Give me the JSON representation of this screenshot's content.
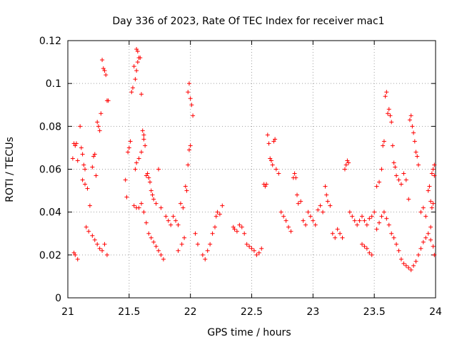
{
  "chart_data": {
    "type": "scatter",
    "title": "Day 336 of 2023, Rate Of TEC Index for receiver mac1",
    "xlabel": "GPS time / hours",
    "ylabel": "ROTI / TECUs",
    "xlim": [
      21,
      24
    ],
    "ylim": [
      0,
      0.12
    ],
    "xticks": [
      21,
      21.5,
      22,
      22.5,
      23,
      23.5,
      24
    ],
    "yticks": [
      0,
      0.02,
      0.04,
      0.06,
      0.08,
      0.1,
      0.12
    ],
    "xtick_labels": [
      "21",
      "21.5",
      "22",
      "22.5",
      "23",
      "23.5",
      "24"
    ],
    "ytick_labels": [
      "0",
      "0.02",
      "0.04",
      "0.06",
      "0.08",
      "0.1",
      "0.12"
    ],
    "grid": true,
    "marker": "+",
    "color": "#ff0000",
    "series": [
      {
        "name": "ROTI",
        "points": [
          [
            21.04,
            0.065
          ],
          [
            21.05,
            0.072
          ],
          [
            21.06,
            0.071
          ],
          [
            21.07,
            0.072
          ],
          [
            21.08,
            0.064
          ],
          [
            21.1,
            0.08
          ],
          [
            21.11,
            0.07
          ],
          [
            21.12,
            0.067
          ],
          [
            21.13,
            0.062
          ],
          [
            21.14,
            0.06
          ],
          [
            21.12,
            0.055
          ],
          [
            21.14,
            0.053
          ],
          [
            21.16,
            0.051
          ],
          [
            21.18,
            0.043
          ],
          [
            21.15,
            0.033
          ],
          [
            21.17,
            0.031
          ],
          [
            21.2,
            0.061
          ],
          [
            21.21,
            0.066
          ],
          [
            21.22,
            0.067
          ],
          [
            21.23,
            0.057
          ],
          [
            21.24,
            0.082
          ],
          [
            21.25,
            0.08
          ],
          [
            21.26,
            0.078
          ],
          [
            21.27,
            0.086
          ],
          [
            21.28,
            0.111
          ],
          [
            21.29,
            0.107
          ],
          [
            21.3,
            0.106
          ],
          [
            21.31,
            0.104
          ],
          [
            21.32,
            0.092
          ],
          [
            21.33,
            0.092
          ],
          [
            21.2,
            0.029
          ],
          [
            21.22,
            0.027
          ],
          [
            21.24,
            0.025
          ],
          [
            21.26,
            0.023
          ],
          [
            21.28,
            0.022
          ],
          [
            21.3,
            0.025
          ],
          [
            21.32,
            0.02
          ],
          [
            21.05,
            0.021
          ],
          [
            21.06,
            0.02
          ],
          [
            21.08,
            0.018
          ],
          [
            21.47,
            0.055
          ],
          [
            21.48,
            0.047
          ],
          [
            21.49,
            0.068
          ],
          [
            21.5,
            0.07
          ],
          [
            21.51,
            0.073
          ],
          [
            21.52,
            0.096
          ],
          [
            21.53,
            0.098
          ],
          [
            21.54,
            0.108
          ],
          [
            21.55,
            0.102
          ],
          [
            21.56,
            0.106
          ],
          [
            21.57,
            0.11
          ],
          [
            21.56,
            0.116
          ],
          [
            21.57,
            0.115
          ],
          [
            21.58,
            0.112
          ],
          [
            21.59,
            0.112
          ],
          [
            21.6,
            0.095
          ],
          [
            21.61,
            0.078
          ],
          [
            21.62,
            0.076
          ],
          [
            21.62,
            0.074
          ],
          [
            21.63,
            0.071
          ],
          [
            21.6,
            0.068
          ],
          [
            21.58,
            0.065
          ],
          [
            21.56,
            0.063
          ],
          [
            21.55,
            0.06
          ],
          [
            21.54,
            0.043
          ],
          [
            21.56,
            0.042
          ],
          [
            21.58,
            0.042
          ],
          [
            21.6,
            0.044
          ],
          [
            21.62,
            0.04
          ],
          [
            21.64,
            0.035
          ],
          [
            21.64,
            0.057
          ],
          [
            21.65,
            0.058
          ],
          [
            21.66,
            0.056
          ],
          [
            21.67,
            0.054
          ],
          [
            21.68,
            0.05
          ],
          [
            21.69,
            0.048
          ],
          [
            21.7,
            0.046
          ],
          [
            21.72,
            0.044
          ],
          [
            21.74,
            0.06
          ],
          [
            21.76,
            0.042
          ],
          [
            21.66,
            0.03
          ],
          [
            21.68,
            0.028
          ],
          [
            21.7,
            0.026
          ],
          [
            21.72,
            0.024
          ],
          [
            21.74,
            0.022
          ],
          [
            21.76,
            0.02
          ],
          [
            21.78,
            0.018
          ],
          [
            21.8,
            0.038
          ],
          [
            21.82,
            0.036
          ],
          [
            21.84,
            0.034
          ],
          [
            21.86,
            0.038
          ],
          [
            21.88,
            0.036
          ],
          [
            21.9,
            0.034
          ],
          [
            21.92,
            0.044
          ],
          [
            21.94,
            0.042
          ],
          [
            21.96,
            0.052
          ],
          [
            21.97,
            0.05
          ],
          [
            21.98,
            0.062
          ],
          [
            21.99,
            0.069
          ],
          [
            22.0,
            0.071
          ],
          [
            21.98,
            0.096
          ],
          [
            21.99,
            0.1
          ],
          [
            22.0,
            0.093
          ],
          [
            22.01,
            0.09
          ],
          [
            22.02,
            0.085
          ],
          [
            21.95,
            0.028
          ],
          [
            21.93,
            0.025
          ],
          [
            21.9,
            0.022
          ],
          [
            22.04,
            0.03
          ],
          [
            22.06,
            0.025
          ],
          [
            22.1,
            0.02
          ],
          [
            22.12,
            0.018
          ],
          [
            22.14,
            0.022
          ],
          [
            22.16,
            0.025
          ],
          [
            22.18,
            0.03
          ],
          [
            22.2,
            0.033
          ],
          [
            22.21,
            0.038
          ],
          [
            22.22,
            0.04
          ],
          [
            22.24,
            0.039
          ],
          [
            22.26,
            0.043
          ],
          [
            22.35,
            0.033
          ],
          [
            22.36,
            0.032
          ],
          [
            22.38,
            0.031
          ],
          [
            22.4,
            0.034
          ],
          [
            22.42,
            0.033
          ],
          [
            22.44,
            0.03
          ],
          [
            22.46,
            0.025
          ],
          [
            22.48,
            0.024
          ],
          [
            22.5,
            0.023
          ],
          [
            22.52,
            0.022
          ],
          [
            22.54,
            0.02
          ],
          [
            22.56,
            0.021
          ],
          [
            22.58,
            0.023
          ],
          [
            22.6,
            0.053
          ],
          [
            22.61,
            0.052
          ],
          [
            22.62,
            0.053
          ],
          [
            22.63,
            0.076
          ],
          [
            22.64,
            0.072
          ],
          [
            22.65,
            0.065
          ],
          [
            22.66,
            0.064
          ],
          [
            22.67,
            0.062
          ],
          [
            22.68,
            0.073
          ],
          [
            22.69,
            0.074
          ],
          [
            22.7,
            0.06
          ],
          [
            22.72,
            0.058
          ],
          [
            22.74,
            0.04
          ],
          [
            22.76,
            0.038
          ],
          [
            22.78,
            0.036
          ],
          [
            22.8,
            0.033
          ],
          [
            22.82,
            0.031
          ],
          [
            22.84,
            0.056
          ],
          [
            22.85,
            0.058
          ],
          [
            22.86,
            0.056
          ],
          [
            22.87,
            0.048
          ],
          [
            22.88,
            0.044
          ],
          [
            22.9,
            0.045
          ],
          [
            22.92,
            0.036
          ],
          [
            22.94,
            0.034
          ],
          [
            22.96,
            0.04
          ],
          [
            22.98,
            0.038
          ],
          [
            23.0,
            0.036
          ],
          [
            23.02,
            0.034
          ],
          [
            23.04,
            0.041
          ],
          [
            23.06,
            0.043
          ],
          [
            23.08,
            0.04
          ],
          [
            23.1,
            0.052
          ],
          [
            23.11,
            0.048
          ],
          [
            23.12,
            0.045
          ],
          [
            23.14,
            0.043
          ],
          [
            23.16,
            0.03
          ],
          [
            23.18,
            0.028
          ],
          [
            23.2,
            0.032
          ],
          [
            23.22,
            0.03
          ],
          [
            23.24,
            0.028
          ],
          [
            23.26,
            0.06
          ],
          [
            23.27,
            0.062
          ],
          [
            23.28,
            0.064
          ],
          [
            23.29,
            0.063
          ],
          [
            23.3,
            0.04
          ],
          [
            23.32,
            0.038
          ],
          [
            23.34,
            0.036
          ],
          [
            23.36,
            0.034
          ],
          [
            23.38,
            0.036
          ],
          [
            23.4,
            0.038
          ],
          [
            23.42,
            0.036
          ],
          [
            23.44,
            0.034
          ],
          [
            23.46,
            0.037
          ],
          [
            23.48,
            0.038
          ],
          [
            23.5,
            0.04
          ],
          [
            23.52,
            0.052
          ],
          [
            23.54,
            0.054
          ],
          [
            23.56,
            0.06
          ],
          [
            23.57,
            0.071
          ],
          [
            23.58,
            0.073
          ],
          [
            23.59,
            0.094
          ],
          [
            23.6,
            0.096
          ],
          [
            23.61,
            0.086
          ],
          [
            23.62,
            0.088
          ],
          [
            23.63,
            0.085
          ],
          [
            23.64,
            0.082
          ],
          [
            23.65,
            0.071
          ],
          [
            23.66,
            0.063
          ],
          [
            23.67,
            0.061
          ],
          [
            23.68,
            0.057
          ],
          [
            23.7,
            0.055
          ],
          [
            23.72,
            0.053
          ],
          [
            23.74,
            0.058
          ],
          [
            23.76,
            0.055
          ],
          [
            23.78,
            0.046
          ],
          [
            23.79,
            0.083
          ],
          [
            23.8,
            0.085
          ],
          [
            23.81,
            0.08
          ],
          [
            23.82,
            0.077
          ],
          [
            23.83,
            0.073
          ],
          [
            23.84,
            0.068
          ],
          [
            23.85,
            0.066
          ],
          [
            23.86,
            0.062
          ],
          [
            23.88,
            0.04
          ],
          [
            23.9,
            0.042
          ],
          [
            23.92,
            0.038
          ],
          [
            23.94,
            0.05
          ],
          [
            23.95,
            0.052
          ],
          [
            23.96,
            0.045
          ],
          [
            23.97,
            0.058
          ],
          [
            23.98,
            0.06
          ],
          [
            23.99,
            0.062
          ],
          [
            23.99,
            0.057
          ],
          [
            23.98,
            0.044
          ],
          [
            23.97,
            0.042
          ],
          [
            23.96,
            0.033
          ],
          [
            23.52,
            0.032
          ],
          [
            23.54,
            0.035
          ],
          [
            23.56,
            0.038
          ],
          [
            23.58,
            0.04
          ],
          [
            23.6,
            0.037
          ],
          [
            23.62,
            0.034
          ],
          [
            23.64,
            0.03
          ],
          [
            23.66,
            0.028
          ],
          [
            23.68,
            0.025
          ],
          [
            23.7,
            0.022
          ],
          [
            23.4,
            0.025
          ],
          [
            23.42,
            0.024
          ],
          [
            23.44,
            0.023
          ],
          [
            23.46,
            0.021
          ],
          [
            23.48,
            0.02
          ],
          [
            23.72,
            0.018
          ],
          [
            23.74,
            0.016
          ],
          [
            23.76,
            0.015
          ],
          [
            23.78,
            0.014
          ],
          [
            23.8,
            0.013
          ],
          [
            23.82,
            0.015
          ],
          [
            23.84,
            0.017
          ],
          [
            23.86,
            0.02
          ],
          [
            23.88,
            0.023
          ],
          [
            23.9,
            0.026
          ],
          [
            23.92,
            0.028
          ],
          [
            23.94,
            0.03
          ],
          [
            23.96,
            0.027
          ],
          [
            23.98,
            0.024
          ],
          [
            23.99,
            0.02
          ]
        ]
      }
    ]
  }
}
